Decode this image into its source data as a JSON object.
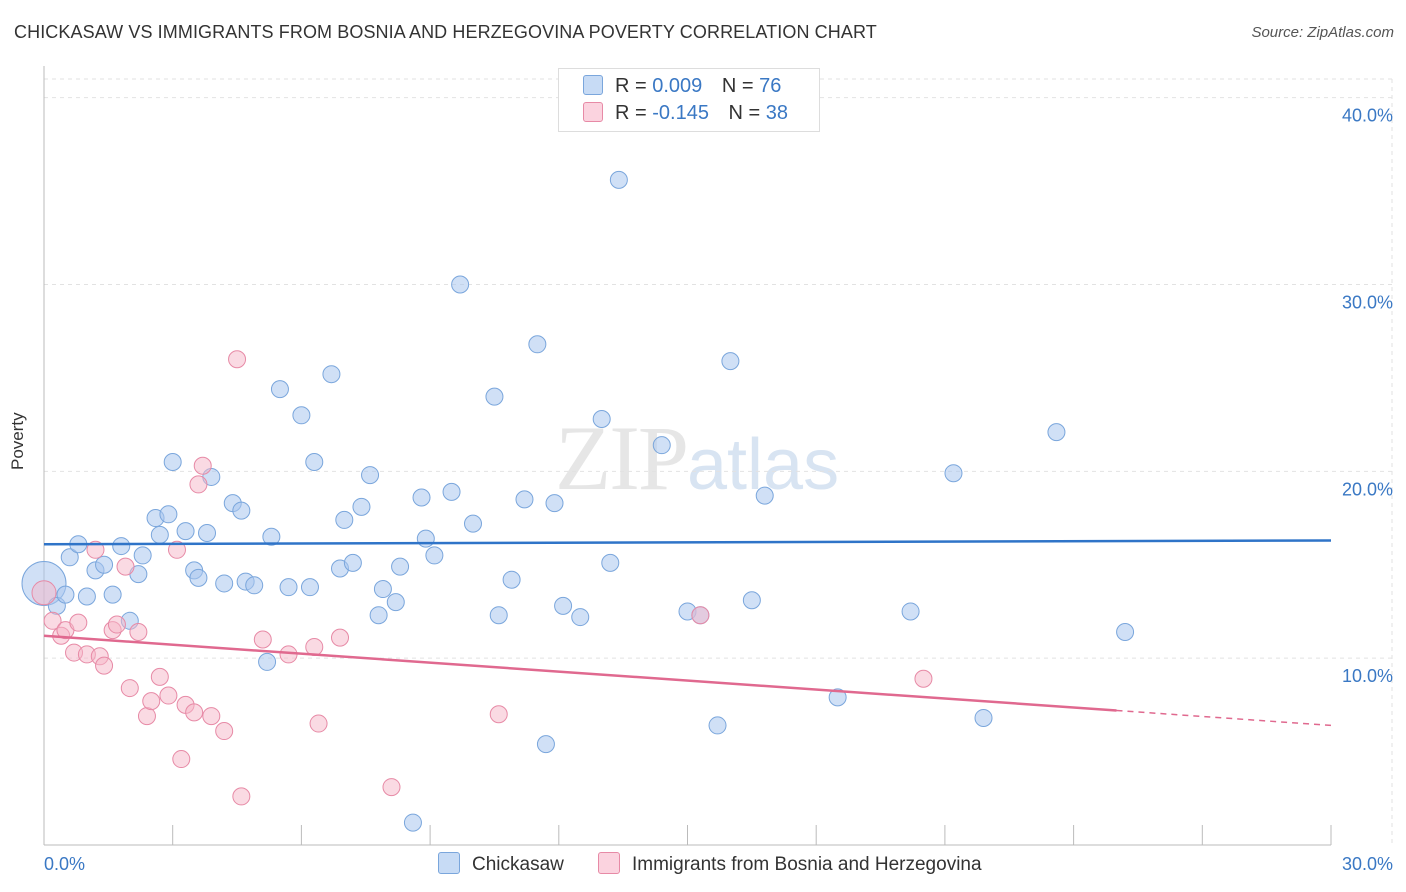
{
  "title": "CHICKASAW VS IMMIGRANTS FROM BOSNIA AND HERZEGOVINA POVERTY CORRELATION CHART",
  "source": "Source: ZipAtlas.com",
  "watermark": {
    "zip": "ZIP",
    "atlas": "atlas"
  },
  "legend": {
    "rows": [
      {
        "r_label": "R =",
        "r_value": "0.009",
        "n_label": "N =",
        "n_value": "76",
        "color": "#a9c7ee"
      },
      {
        "r_label": "R =",
        "r_value": "-0.145",
        "n_label": "N =",
        "n_value": "38",
        "color": "#f5b6c8"
      }
    ]
  },
  "bottom_legend": [
    "Chickasaw",
    "Immigrants from Bosnia and Herzegovina"
  ],
  "chart_data": {
    "type": "scatter",
    "title": "CHICKASAW VS IMMIGRANTS FROM BOSNIA AND HERZEGOVINA POVERTY CORRELATION CHART",
    "xlabel": "",
    "ylabel": "Poverty",
    "xlim": [
      0,
      30
    ],
    "ylim": [
      0,
      41
    ],
    "x_tick_labels": [
      "0.0%",
      "30.0%"
    ],
    "y_ticks": [
      10,
      20,
      30,
      40
    ],
    "y_tick_labels": [
      "10.0%",
      "20.0%",
      "30.0%",
      "40.0%"
    ],
    "grid": true,
    "series": [
      {
        "name": "Chickasaw",
        "color": "#a9c7ee",
        "stroke": "#7aa6dc",
        "trend": {
          "x": [
            0,
            30
          ],
          "y": [
            16.1,
            16.3
          ],
          "color": "#2f74c8"
        },
        "points": [
          [
            0.0,
            14.0
          ],
          [
            0.3,
            12.8
          ],
          [
            0.5,
            13.4
          ],
          [
            0.6,
            15.4
          ],
          [
            0.8,
            16.1
          ],
          [
            1.0,
            13.3
          ],
          [
            1.2,
            14.7
          ],
          [
            1.4,
            15.0
          ],
          [
            1.6,
            13.4
          ],
          [
            1.8,
            16.0
          ],
          [
            2.0,
            12.0
          ],
          [
            2.2,
            14.5
          ],
          [
            2.3,
            15.5
          ],
          [
            2.6,
            17.5
          ],
          [
            2.7,
            16.6
          ],
          [
            2.9,
            17.7
          ],
          [
            3.0,
            20.5
          ],
          [
            3.3,
            16.8
          ],
          [
            3.5,
            14.7
          ],
          [
            3.6,
            14.3
          ],
          [
            3.8,
            16.7
          ],
          [
            3.9,
            19.7
          ],
          [
            4.2,
            14.0
          ],
          [
            4.4,
            18.3
          ],
          [
            4.6,
            17.9
          ],
          [
            4.7,
            14.1
          ],
          [
            4.9,
            13.9
          ],
          [
            5.2,
            9.8
          ],
          [
            5.3,
            16.5
          ],
          [
            5.5,
            24.4
          ],
          [
            5.7,
            13.8
          ],
          [
            6.0,
            23.0
          ],
          [
            6.2,
            13.8
          ],
          [
            6.3,
            20.5
          ],
          [
            6.7,
            25.2
          ],
          [
            6.9,
            14.8
          ],
          [
            7.0,
            17.4
          ],
          [
            7.2,
            15.1
          ],
          [
            7.4,
            18.1
          ],
          [
            7.6,
            19.8
          ],
          [
            7.8,
            12.3
          ],
          [
            7.9,
            13.7
          ],
          [
            8.2,
            13.0
          ],
          [
            8.3,
            14.9
          ],
          [
            8.6,
            1.2
          ],
          [
            8.8,
            18.6
          ],
          [
            8.9,
            16.4
          ],
          [
            9.1,
            15.5
          ],
          [
            9.5,
            18.9
          ],
          [
            9.7,
            30.0
          ],
          [
            10.0,
            17.2
          ],
          [
            10.5,
            24.0
          ],
          [
            10.6,
            12.3
          ],
          [
            10.9,
            14.2
          ],
          [
            11.2,
            18.5
          ],
          [
            11.5,
            26.8
          ],
          [
            11.7,
            5.4
          ],
          [
            11.9,
            18.3
          ],
          [
            12.1,
            12.8
          ],
          [
            12.5,
            12.2
          ],
          [
            13.0,
            22.8
          ],
          [
            13.2,
            15.1
          ],
          [
            13.4,
            35.6
          ],
          [
            14.4,
            21.4
          ],
          [
            15.0,
            12.5
          ],
          [
            15.3,
            12.3
          ],
          [
            15.7,
            6.4
          ],
          [
            16.0,
            25.9
          ],
          [
            16.5,
            13.1
          ],
          [
            16.8,
            18.7
          ],
          [
            18.5,
            7.9
          ],
          [
            20.2,
            12.5
          ],
          [
            21.2,
            19.9
          ],
          [
            21.9,
            6.8
          ],
          [
            23.6,
            22.1
          ],
          [
            25.2,
            11.4
          ]
        ]
      },
      {
        "name": "Immigrants from Bosnia and Herzegovina",
        "color": "#f5b6c8",
        "stroke": "#e78aa6",
        "trend": {
          "x": [
            0,
            25
          ],
          "y": [
            11.2,
            7.2
          ],
          "dashed_to": [
            30,
            6.4
          ],
          "color": "#e0698f"
        },
        "points": [
          [
            0.0,
            13.5
          ],
          [
            0.2,
            12.0
          ],
          [
            0.4,
            11.2
          ],
          [
            0.5,
            11.5
          ],
          [
            0.7,
            10.3
          ],
          [
            0.8,
            11.9
          ],
          [
            1.0,
            10.2
          ],
          [
            1.2,
            15.8
          ],
          [
            1.3,
            10.1
          ],
          [
            1.4,
            9.6
          ],
          [
            1.6,
            11.5
          ],
          [
            1.7,
            11.8
          ],
          [
            1.9,
            14.9
          ],
          [
            2.0,
            8.4
          ],
          [
            2.2,
            11.4
          ],
          [
            2.4,
            6.9
          ],
          [
            2.5,
            7.7
          ],
          [
            2.7,
            9.0
          ],
          [
            2.9,
            8.0
          ],
          [
            3.1,
            15.8
          ],
          [
            3.2,
            4.6
          ],
          [
            3.3,
            7.5
          ],
          [
            3.5,
            7.1
          ],
          [
            3.6,
            19.3
          ],
          [
            3.7,
            20.3
          ],
          [
            3.9,
            6.9
          ],
          [
            4.2,
            6.1
          ],
          [
            4.5,
            26.0
          ],
          [
            4.6,
            2.6
          ],
          [
            5.1,
            11.0
          ],
          [
            5.7,
            10.2
          ],
          [
            6.3,
            10.6
          ],
          [
            6.4,
            6.5
          ],
          [
            6.9,
            11.1
          ],
          [
            8.1,
            3.1
          ],
          [
            10.6,
            7.0
          ],
          [
            15.3,
            12.3
          ],
          [
            20.5,
            8.9
          ]
        ]
      }
    ]
  }
}
